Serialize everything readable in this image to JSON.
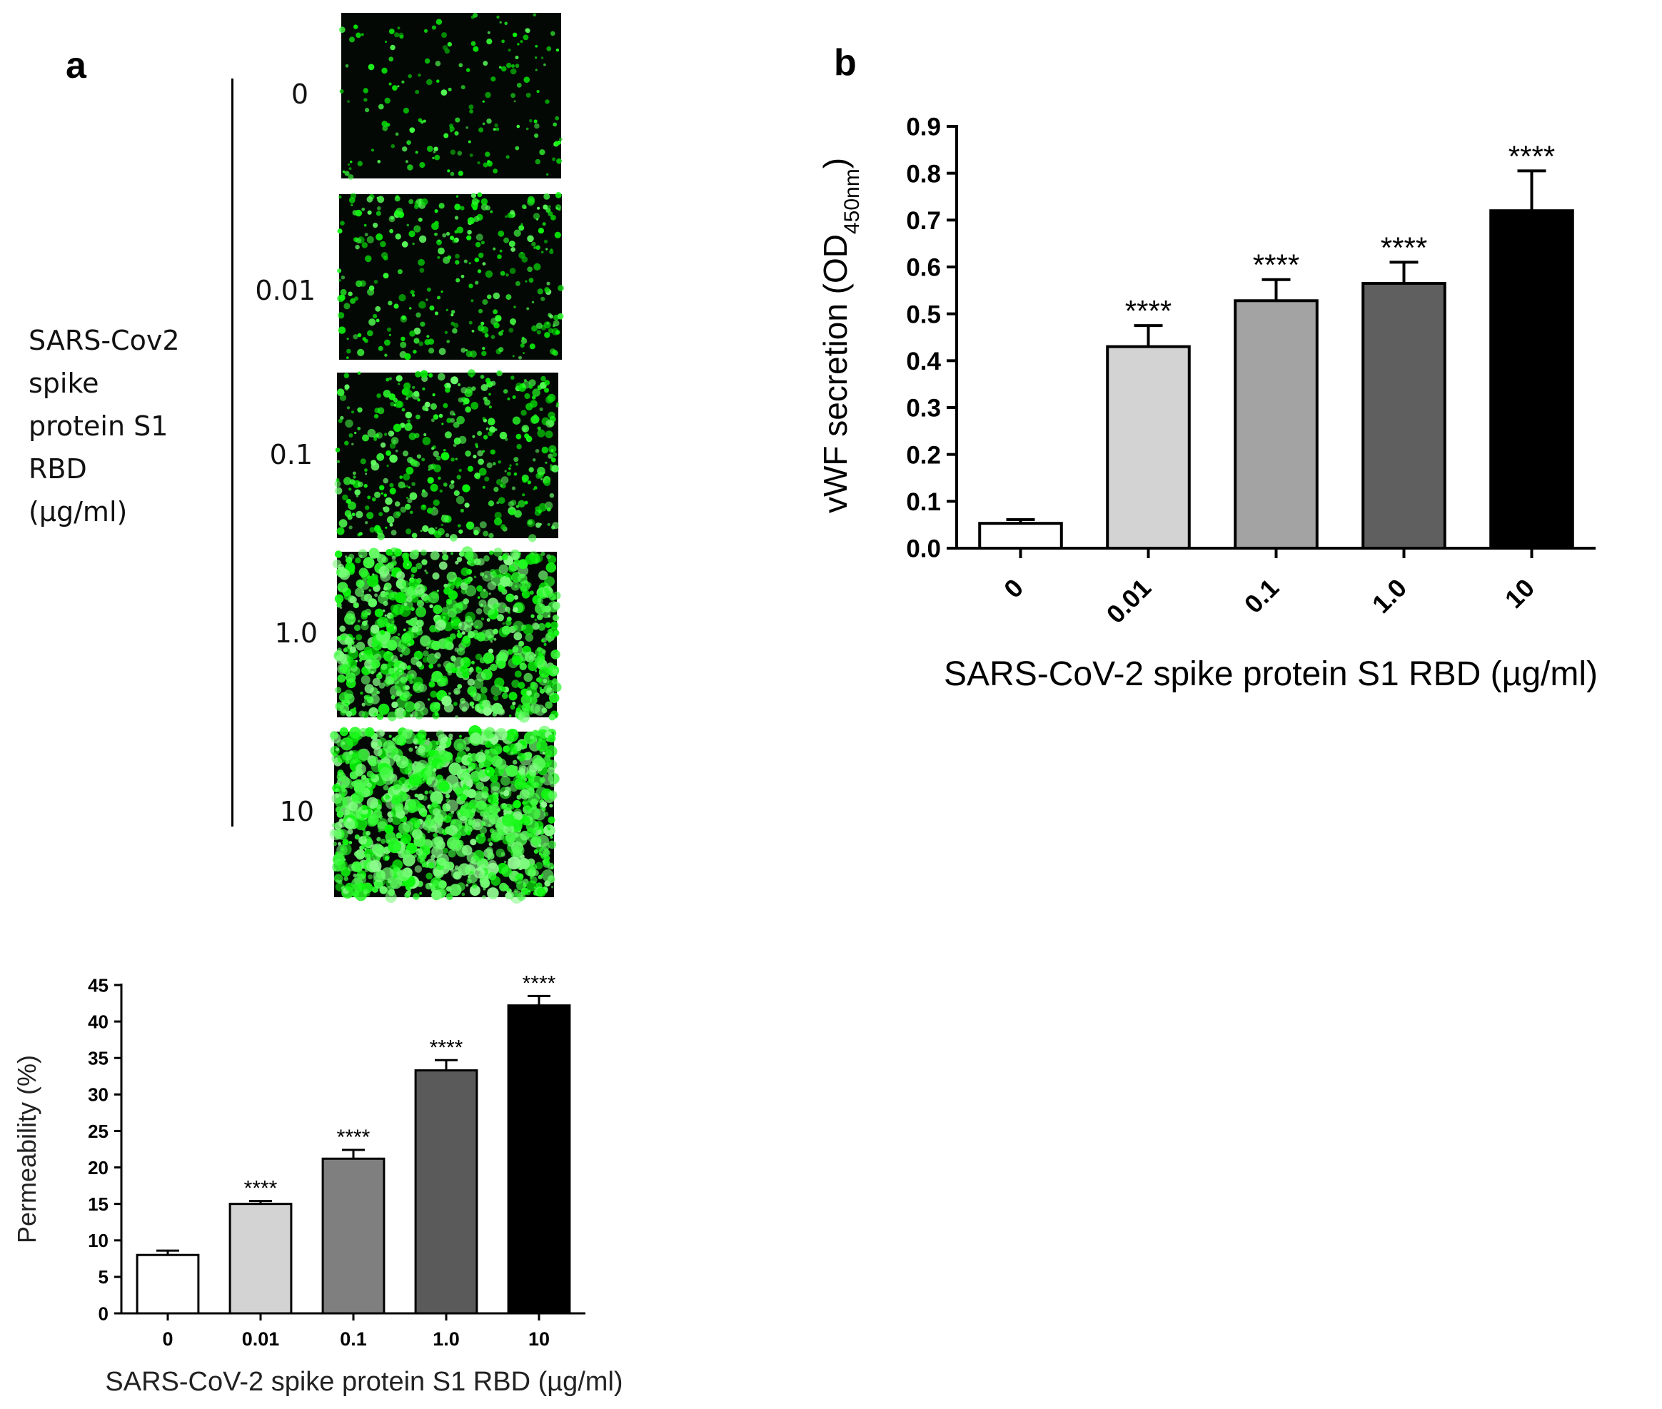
{
  "panel_a": {
    "letter": "a",
    "side_label": [
      "SARS-Cov2",
      "spike",
      "protein S1",
      "RBD",
      "(µg/ml)"
    ],
    "concentrations": [
      "0",
      "0.01",
      "0.1",
      "1.0",
      "10"
    ],
    "images": [
      {
        "label": "0",
        "density": 0.12
      },
      {
        "label": "0.01",
        "density": 0.22
      },
      {
        "label": "0.1",
        "density": 0.3
      },
      {
        "label": "1.0",
        "density": 0.58
      },
      {
        "label": "10",
        "density": 0.72
      }
    ]
  },
  "panel_b": {
    "letter": "b"
  },
  "chart_data": [
    {
      "type": "bar",
      "id": "permeability",
      "categories": [
        "0",
        "0.01",
        "0.1",
        "1.0",
        "10"
      ],
      "values": [
        8,
        15,
        21.2,
        33.3,
        42.2
      ],
      "errors": [
        0.6,
        0.4,
        1.2,
        1.4,
        1.3
      ],
      "annotations": [
        "",
        "****",
        "****",
        "****",
        "****"
      ],
      "xlabel": "SARS-CoV-2 spike protein S1 RBD (µg/ml)",
      "ylabel": "Permeability (%)",
      "ylim": [
        0,
        45
      ],
      "yticks": [
        "0",
        "5",
        "10",
        "15",
        "20",
        "25",
        "30",
        "35",
        "40",
        "45"
      ],
      "bar_colors": [
        "#ffffff",
        "#d3d3d3",
        "#7f7f7f",
        "#5a5a5a",
        "#000000"
      ]
    },
    {
      "type": "bar",
      "id": "vwf",
      "categories": [
        "0",
        "0.01",
        "0.1",
        "1.0",
        "10"
      ],
      "values": [
        0.053,
        0.43,
        0.528,
        0.565,
        0.72
      ],
      "errors": [
        0.008,
        0.045,
        0.045,
        0.045,
        0.085
      ],
      "annotations": [
        "",
        "****",
        "****",
        "****",
        "****"
      ],
      "xlabel": "SARS-CoV-2 spike protein S1 RBD (µg/ml)",
      "ylabel_main": "vWF secretion (OD",
      "ylabel_sub": "450nm",
      "ylabel_end": ")",
      "ylim": [
        0,
        0.9
      ],
      "yticks": [
        "0.0",
        "0.1",
        "0.2",
        "0.3",
        "0.4",
        "0.5",
        "0.6",
        "0.7",
        "0.8",
        "0.9"
      ],
      "bar_colors": [
        "#ffffff",
        "#d3d3d3",
        "#a3a3a3",
        "#5f5f5f",
        "#000000"
      ]
    }
  ]
}
